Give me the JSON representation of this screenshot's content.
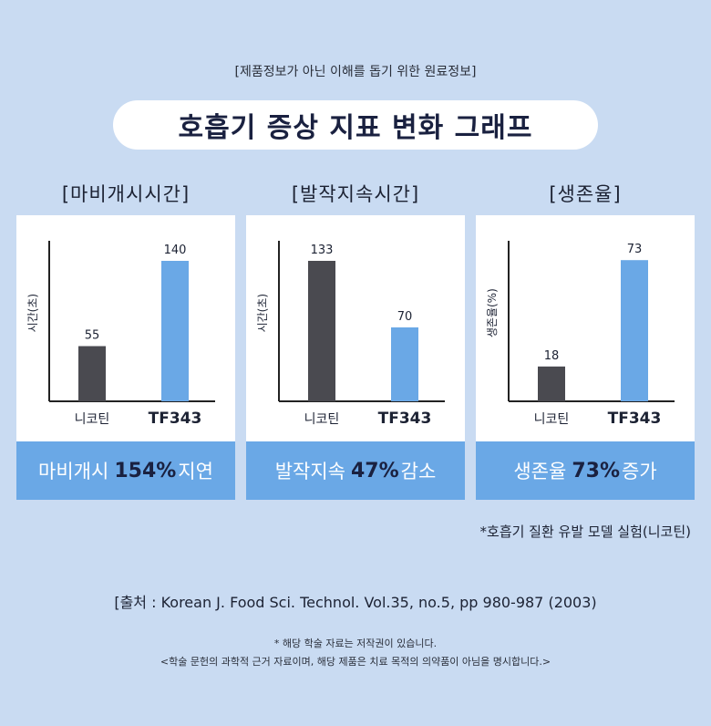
{
  "header": {
    "notice": "[제품정보가 아닌 이해를 돕기 위한 원료정보]",
    "title": "호흡기 증상 지표 변화 그래프"
  },
  "colors": {
    "background": "#c9dbf2",
    "control_bar": "#4a4a50",
    "treatment_bar": "#6aa8e6",
    "summary_bg": "#6aa8e6",
    "title_text": "#1a2140"
  },
  "chart_data": [
    {
      "type": "bar",
      "title": "[마비개시시간]",
      "ylabel": "시간(초)",
      "categories": [
        "니코틴",
        "TF343"
      ],
      "values": [
        55,
        140
      ],
      "ylim": [
        0,
        160
      ],
      "summary": {
        "prefix": "마비개시",
        "highlight": "154%",
        "suffix": "지연"
      }
    },
    {
      "type": "bar",
      "title": "[발작지속시간]",
      "ylabel": "시간(초)",
      "categories": [
        "니코틴",
        "TF343"
      ],
      "values": [
        133,
        70
      ],
      "ylim": [
        0,
        152
      ],
      "summary": {
        "prefix": "발작지속",
        "highlight": "47%",
        "suffix": "감소"
      }
    },
    {
      "type": "bar",
      "title": "[생존율]",
      "ylabel": "생존율(%)",
      "categories": [
        "니코틴",
        "TF343"
      ],
      "values": [
        18,
        73
      ],
      "ylim": [
        0,
        83
      ],
      "summary": {
        "prefix": "생존율",
        "highlight": "73%",
        "suffix": "증가"
      }
    }
  ],
  "footnote": "*호흡기 질환 유발 모델 실험(니코틴)",
  "source": "[출처 : Korean J. Food Sci. Technol. Vol.35, no.5, pp 980-987 (2003)",
  "copyright": "* 해당 학술 자료는 저작권이 있습니다.",
  "disclaimer": "<학술 문헌의 과학적 근거 자료이며, 해당 제품은 치료 목적의 의약품이 아님을 명시합니다.>"
}
